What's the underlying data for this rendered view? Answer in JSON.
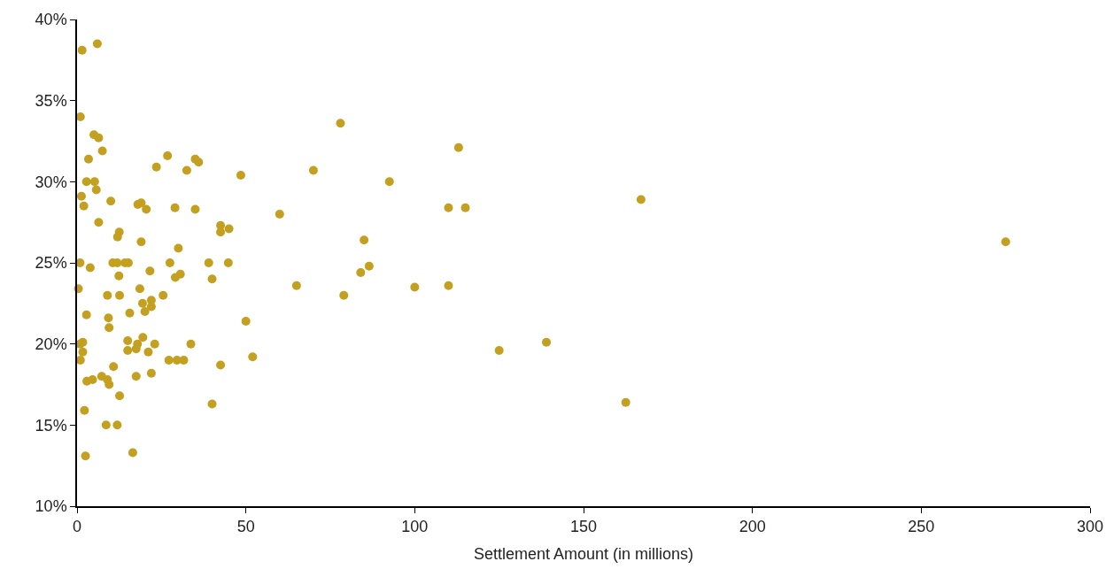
{
  "chart_data": {
    "type": "scatter",
    "xlabel": "Settlement Amount (in millions)",
    "marker": "circle",
    "xlim": [
      0,
      300
    ],
    "xticks": [
      0,
      50,
      100,
      150,
      200,
      250,
      300
    ],
    "ylim": [
      10,
      40
    ],
    "yticks": [
      {
        "value": 10,
        "label": "10%"
      },
      {
        "value": 15,
        "label": "15%"
      },
      {
        "value": 20,
        "label": "20%"
      },
      {
        "value": 25,
        "label": "25%"
      },
      {
        "value": 30,
        "label": "30%"
      },
      {
        "value": 35,
        "label": "35%"
      },
      {
        "value": 40,
        "label": "40%"
      }
    ],
    "series": [
      {
        "color": "#c4a020",
        "x": [
          1.5,
          6,
          1,
          5,
          6.4,
          7.5,
          3.4,
          2.8,
          5.2,
          5.7,
          1.3,
          2,
          10,
          6.4,
          26.8,
          23.5,
          35,
          36,
          32.5,
          48.5,
          29,
          18,
          19,
          20.5,
          35,
          12,
          12.5,
          19,
          30,
          42.5,
          42.5,
          45,
          60,
          70,
          78,
          92.5,
          113,
          110,
          115,
          167,
          275,
          85,
          86.5,
          84,
          65,
          79,
          100,
          110,
          50,
          52,
          42.5,
          40,
          125,
          139,
          162.5,
          0.9,
          3.9,
          10.6,
          11.9,
          14.2,
          15.2,
          27.5,
          39,
          44.8,
          21.6,
          12.4,
          29.1,
          30.6,
          40,
          0.4,
          18.6,
          9,
          12.6,
          25.5,
          22,
          19.4,
          22,
          20.1,
          2.8,
          9.3,
          15.6,
          9.5,
          19.5,
          15,
          17.9,
          17.5,
          15,
          23,
          21.1,
          33.7,
          0.9,
          1.7,
          1.7,
          1,
          27.2,
          29.6,
          31.6,
          10.8,
          2.9,
          4.6,
          7.3,
          9,
          9.5,
          17.5,
          22,
          12.6,
          2.2,
          8.6,
          11.9,
          2.5,
          16.5
        ],
        "values": [
          38.1,
          38.5,
          34.0,
          32.9,
          32.7,
          31.9,
          31.4,
          30.0,
          30.0,
          29.5,
          29.1,
          28.5,
          28.8,
          27.5,
          31.6,
          30.9,
          31.4,
          31.2,
          30.7,
          30.4,
          28.4,
          28.6,
          28.7,
          28.3,
          28.3,
          26.6,
          26.9,
          26.3,
          25.9,
          27.3,
          26.9,
          27.1,
          28.0,
          30.7,
          33.6,
          30.0,
          32.1,
          28.4,
          28.4,
          28.9,
          26.3,
          26.4,
          24.8,
          24.4,
          23.6,
          23.0,
          23.5,
          23.6,
          21.4,
          19.2,
          18.7,
          16.3,
          19.6,
          20.1,
          16.4,
          25.0,
          24.7,
          25.0,
          25.0,
          25.0,
          25.0,
          25.0,
          25.0,
          25.0,
          24.5,
          24.2,
          24.1,
          24.3,
          24.0,
          23.4,
          23.4,
          23.0,
          23.0,
          23.0,
          22.7,
          22.5,
          22.3,
          22.0,
          21.8,
          21.6,
          21.9,
          21.0,
          20.4,
          20.2,
          20.0,
          19.7,
          19.6,
          20.0,
          19.5,
          20.0,
          20.0,
          20.1,
          19.5,
          19.0,
          19.0,
          19.0,
          19.0,
          18.6,
          17.7,
          17.8,
          18.0,
          17.8,
          17.5,
          18.0,
          18.2,
          16.8,
          15.9,
          15.0,
          15.0,
          13.1,
          13.3
        ]
      }
    ]
  }
}
